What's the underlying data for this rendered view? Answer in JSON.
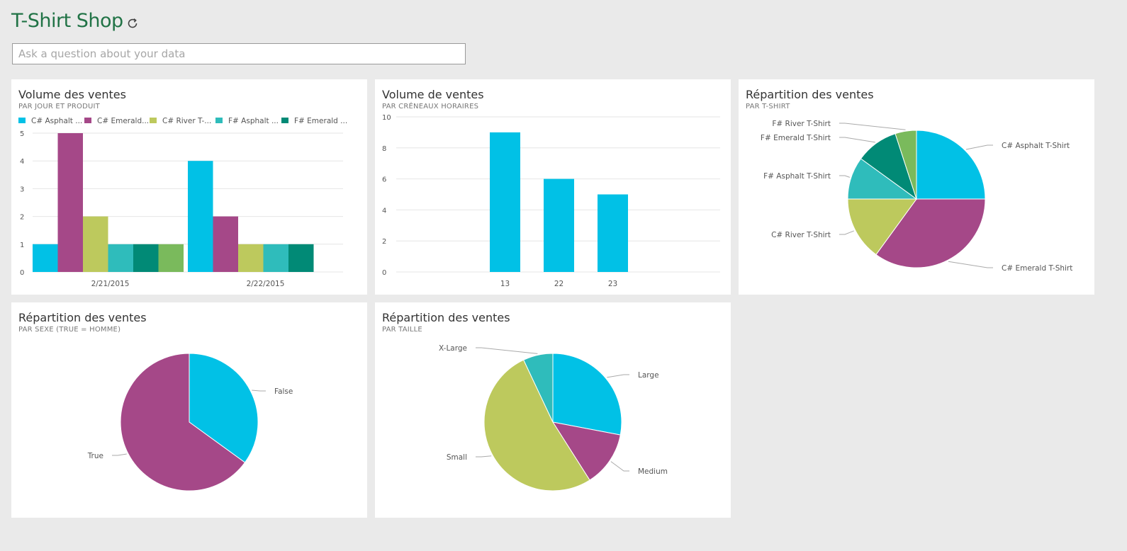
{
  "header": {
    "title": "T-Shirt Shop",
    "qa_placeholder": "Ask a question about your data"
  },
  "colors": {
    "accent": "#217346",
    "cyan": "#01c1e6",
    "magenta": "#a54888",
    "lime": "#bdc95d",
    "teal": "#2fbcbb",
    "darkteal": "#018a76",
    "green": "#7aba5c"
  },
  "tiles": {
    "sales_by_day": {
      "title": "Volume des ventes",
      "subtitle": "PAR JOUR ET PRODUIT"
    },
    "sales_by_hour": {
      "title": "Volume de ventes",
      "subtitle": "PAR CRÉNEAUX HORAIRES"
    },
    "by_tshirt": {
      "title": "Répartition des ventes",
      "subtitle": "PAR T-SHIRT"
    },
    "by_sex": {
      "title": "Répartition des ventes",
      "subtitle": "PAR SEXE (TRUE = HOMME)"
    },
    "by_size": {
      "title": "Répartition des ventes",
      "subtitle": "PAR TAILLE"
    }
  },
  "chart_data": [
    {
      "type": "bar",
      "legend_labels": [
        "C# Asphalt ...",
        "C# Emerald...",
        "C# River T-...",
        "F# Asphalt ...",
        "F# Emerald ..."
      ],
      "categories": [
        "2/21/2015",
        "2/22/2015"
      ],
      "series": [
        {
          "name": "C# Asphalt T-Shirt",
          "color": "#01c1e6",
          "values": [
            1,
            4
          ]
        },
        {
          "name": "C# Emerald T-Shirt",
          "color": "#a54888",
          "values": [
            5,
            2
          ]
        },
        {
          "name": "C# River T-Shirt",
          "color": "#bdc95d",
          "values": [
            2,
            1
          ]
        },
        {
          "name": "F# Asphalt T-Shirt",
          "color": "#2fbcbb",
          "values": [
            1,
            1
          ]
        },
        {
          "name": "F# Emerald T-Shirt",
          "color": "#018a76",
          "values": [
            1,
            1
          ]
        },
        {
          "name": "F# River T-Shirt",
          "color": "#7aba5c",
          "values": [
            1,
            0
          ]
        }
      ],
      "yticks": [
        0,
        1,
        2,
        3,
        4,
        5
      ],
      "ylim": [
        0,
        5
      ],
      "grid": true,
      "legend": "top"
    },
    {
      "type": "bar",
      "categories": [
        "13",
        "22",
        "23"
      ],
      "values": [
        9,
        6,
        5
      ],
      "color": "#01c1e6",
      "yticks": [
        0,
        2,
        4,
        6,
        8,
        10
      ],
      "ylim": [
        0,
        10
      ],
      "grid": true
    },
    {
      "type": "pie",
      "slices": [
        {
          "label": "C# Asphalt T-Shirt",
          "value": 25,
          "color": "#01c1e6"
        },
        {
          "label": "C# Emerald T-Shirt",
          "value": 35,
          "color": "#a54888"
        },
        {
          "label": "C# River T-Shirt",
          "value": 15,
          "color": "#bdc95d"
        },
        {
          "label": "F# Asphalt T-Shirt",
          "value": 10,
          "color": "#2fbcbb"
        },
        {
          "label": "F# Emerald T-Shirt",
          "value": 10,
          "color": "#018a76"
        },
        {
          "label": "F# River T-Shirt",
          "value": 5,
          "color": "#7aba5c"
        }
      ]
    },
    {
      "type": "pie",
      "slices": [
        {
          "label": "False",
          "value": 35,
          "color": "#01c1e6"
        },
        {
          "label": "True",
          "value": 65,
          "color": "#a54888"
        }
      ]
    },
    {
      "type": "pie",
      "slices": [
        {
          "label": "Large",
          "value": 28,
          "color": "#01c1e6"
        },
        {
          "label": "Medium",
          "value": 13,
          "color": "#a54888"
        },
        {
          "label": "Small",
          "value": 52,
          "color": "#bdc95d"
        },
        {
          "label": "X-Large",
          "value": 7,
          "color": "#2fbcbb"
        }
      ]
    }
  ]
}
